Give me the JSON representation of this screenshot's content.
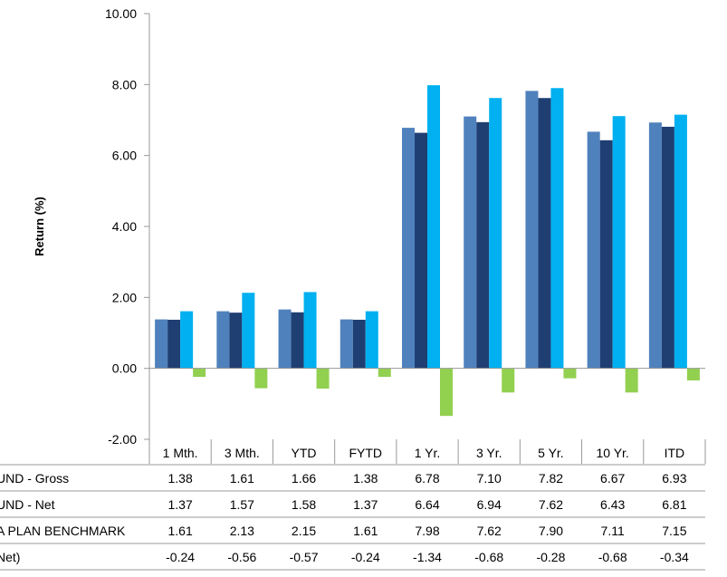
{
  "chart_data": {
    "type": "bar",
    "ylabel": "Return (%)",
    "ylim": [
      -2,
      10
    ],
    "yticks": [
      "10.00",
      "8.00",
      "6.00",
      "4.00",
      "2.00",
      "0.00",
      "-2.00"
    ],
    "categories": [
      "1 Mth.",
      "3 Mth.",
      "YTD",
      "FYTD",
      "1 Yr.",
      "3 Yr.",
      "5 Yr.",
      "10 Yr.",
      "ITD"
    ],
    "grid": false,
    "legend": "table-below",
    "series": [
      {
        "name": "UND - Gross",
        "color": "#4F81BD",
        "values": [
          1.38,
          1.61,
          1.66,
          1.38,
          6.78,
          7.1,
          7.82,
          6.67,
          6.93
        ],
        "labels": [
          "1.38",
          "1.61",
          "1.66",
          "1.38",
          "6.78",
          "7.10",
          "7.82",
          "6.67",
          "6.93"
        ]
      },
      {
        "name": "UND - Net",
        "color": "#1F3F73",
        "values": [
          1.37,
          1.57,
          1.58,
          1.37,
          6.64,
          6.94,
          7.62,
          6.43,
          6.81
        ],
        "labels": [
          "1.37",
          "1.57",
          "1.58",
          "1.37",
          "6.64",
          "6.94",
          "7.62",
          "6.43",
          "6.81"
        ]
      },
      {
        "name": "A PLAN BENCHMARK",
        "color": "#00B0F0",
        "values": [
          1.61,
          2.13,
          2.15,
          1.61,
          7.98,
          7.62,
          7.9,
          7.11,
          7.15
        ],
        "labels": [
          "1.61",
          "2.13",
          "2.15",
          "1.61",
          "7.98",
          "7.62",
          "7.90",
          "7.11",
          "7.15"
        ]
      },
      {
        "name": "Net)",
        "color": "#92D050",
        "values": [
          -0.24,
          -0.56,
          -0.57,
          -0.24,
          -1.34,
          -0.68,
          -0.28,
          -0.68,
          -0.34
        ],
        "labels": [
          "-0.24",
          "-0.56",
          "-0.57",
          "-0.24",
          "-1.34",
          "-0.68",
          "-0.28",
          "-0.68",
          "-0.34"
        ]
      }
    ]
  }
}
